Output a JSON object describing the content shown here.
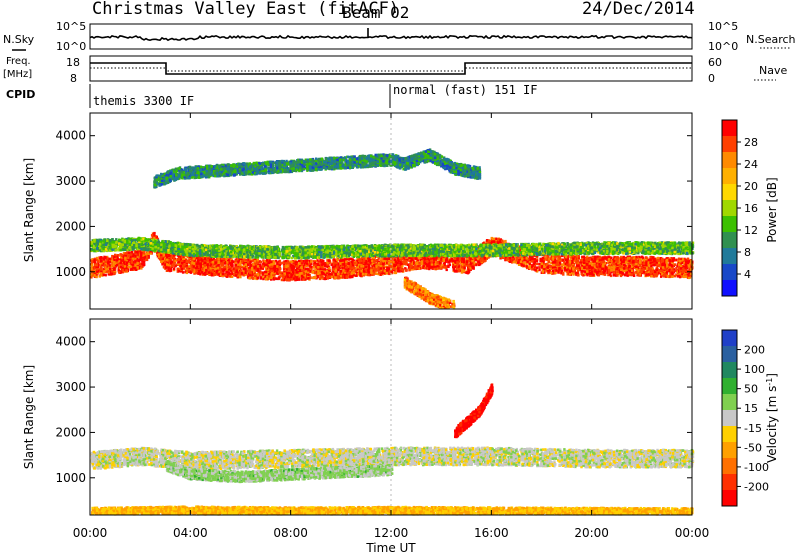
{
  "header": {
    "title": "Christmas Valley East (fitACF)",
    "beam": "Beam 02",
    "date": "24/Dec/2014"
  },
  "status": {
    "nsky_label": "N.Sky",
    "nsearch_label": "N.Search",
    "nsky_ticks": [
      "10^5",
      "10^0"
    ],
    "nsearch_ticks": [
      "10^5",
      "10^0"
    ],
    "freq_label_line1": "Freq.",
    "freq_label_line2": "[MHz]",
    "freq_ticks": [
      "18",
      "8"
    ],
    "nave_label": "Nave",
    "nave_ticks": [
      "60",
      "0"
    ],
    "cpid_label": "CPID",
    "cpid_segments": [
      {
        "label": "themis 3300 IF",
        "start_hour": 0,
        "end_hour": 12.0
      },
      {
        "label": "normal (fast) 151 IF",
        "start_hour": 12.0,
        "end_hour": 24
      }
    ]
  },
  "axes": {
    "x_ticks": [
      "00:00",
      "04:00",
      "08:00",
      "12:00",
      "16:00",
      "20:00",
      "00:00"
    ],
    "x_label": "Time UT",
    "y_label": "Slant Range [km]",
    "y_ticks": [
      "1000",
      "2000",
      "3000",
      "4000"
    ]
  },
  "colorbars": {
    "power_label": "Power [dB]",
    "power_ticks": [
      "28",
      "24",
      "20",
      "16",
      "12",
      "8",
      "4"
    ],
    "power_colors": [
      "#ff0000",
      "#ff4000",
      "#ff8a00",
      "#ffb000",
      "#ffd800",
      "#a0d800",
      "#3cc000",
      "#309050",
      "#207a9a",
      "#1848c8",
      "#1010ff"
    ],
    "velocity_label_line": "Velocity [m s",
    "velocity_label_sup": "-1",
    "velocity_label_end": "]",
    "velocity_ticks": [
      "200",
      "100",
      "50",
      "15",
      "-15",
      "-50",
      "-100",
      "-200"
    ],
    "velocity_colors": [
      "#2040c8",
      "#2a60a0",
      "#208860",
      "#30b030",
      "#80d050",
      "#c8c8c8",
      "#ffd000",
      "#ffa000",
      "#ff7000",
      "#ff3000",
      "#ff0000"
    ]
  },
  "chart_data": [
    {
      "type": "heatmap",
      "name": "Power",
      "xlabel": "Time UT",
      "ylabel": "Slant Range [km]",
      "xlim": [
        0,
        24
      ],
      "ylim": [
        180,
        4500
      ],
      "colorbar": {
        "label": "Power [dB]",
        "range": [
          0,
          30
        ]
      },
      "bands": [
        {
          "t": [
            0,
            2,
            2.5,
            3,
            4,
            6,
            8,
            10,
            12,
            13,
            14,
            15,
            16,
            18,
            20,
            22,
            24
          ],
          "range_km": [
            1100,
            1300,
            1700,
            1250,
            1200,
            1100,
            1050,
            1100,
            1200,
            1300,
            1300,
            1200,
            1600,
            1200,
            1150,
            1150,
            1100
          ],
          "power_db": 28
        },
        {
          "t": [
            0,
            2,
            4,
            8,
            12,
            16,
            20,
            24
          ],
          "range_km": [
            1600,
            1650,
            1500,
            1450,
            1500,
            1500,
            1550,
            1550
          ],
          "power_db": 12
        },
        {
          "t": [
            12.5,
            13.5,
            14.5
          ],
          "range_km": [
            800,
            450,
            250
          ],
          "power_db": 24
        },
        {
          "t": [
            2.5,
            3.5,
            12,
            12.5,
            13.5,
            14.5,
            15.5
          ],
          "range_km": [
            3000,
            3200,
            3500,
            3400,
            3600,
            3300,
            3200
          ],
          "power_db": 8
        }
      ]
    },
    {
      "type": "heatmap",
      "name": "Velocity",
      "xlabel": "Time UT",
      "ylabel": "Slant Range [km]",
      "xlim": [
        0,
        24
      ],
      "ylim": [
        180,
        4500
      ],
      "colorbar": {
        "label": "Velocity [m s-1]",
        "range": [
          -200,
          200
        ]
      },
      "bands": [
        {
          "t": [
            0,
            2,
            4,
            8,
            12,
            16,
            20,
            24
          ],
          "range_km": [
            1400,
            1500,
            1400,
            1450,
            1500,
            1500,
            1450,
            1450
          ],
          "velocity": 0
        },
        {
          "t": [
            3,
            4,
            6,
            8,
            10,
            12
          ],
          "range_km": [
            1300,
            1100,
            1050,
            1100,
            1150,
            1200
          ],
          "velocity": 30
        },
        {
          "t": [
            0,
            4,
            8,
            12,
            16,
            20,
            24
          ],
          "range_km": [
            250,
            280,
            260,
            270,
            260,
            250,
            240
          ],
          "velocity": -60
        },
        {
          "t": [
            14.5,
            15.5,
            16
          ],
          "range_km": [
            2000,
            2500,
            3000
          ],
          "velocity": -200
        }
      ]
    }
  ]
}
